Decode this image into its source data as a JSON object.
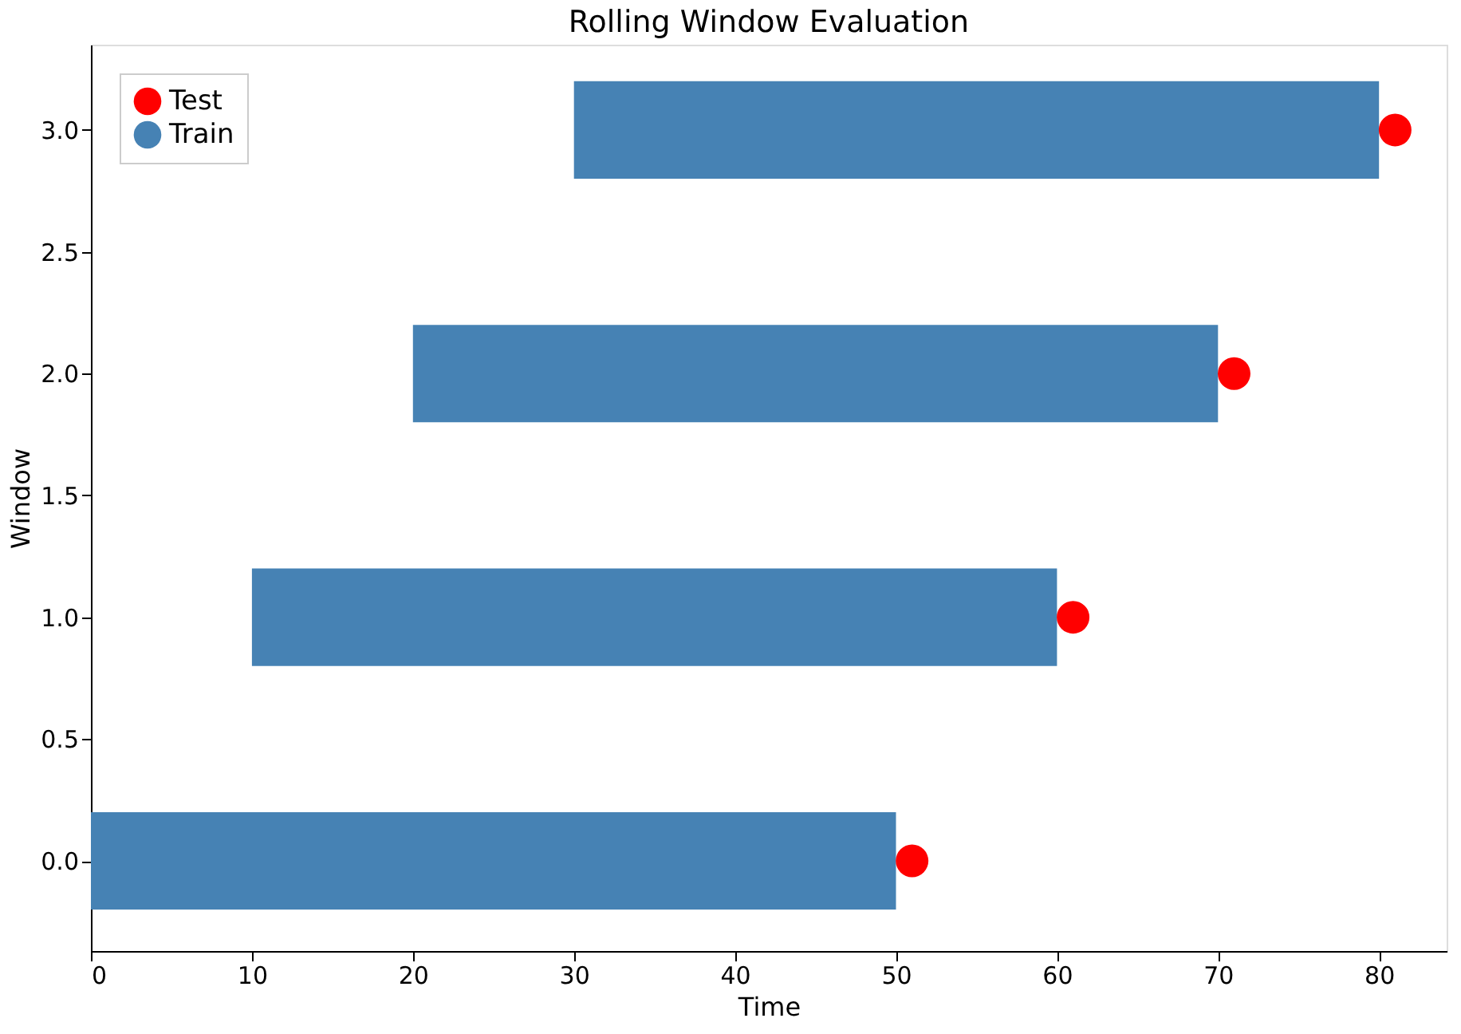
{
  "chart_data": {
    "type": "bar",
    "title": "Rolling Window Evaluation",
    "xlabel": "Time",
    "ylabel": "Window",
    "orientation": "horizontal",
    "legend": "top left",
    "xlim": [
      0,
      84.2
    ],
    "xticks": [
      0,
      10,
      20,
      30,
      40,
      50,
      60,
      70,
      80
    ],
    "ylim": [
      -0.37,
      3.35
    ],
    "yticks": [
      {
        "value": 0,
        "label": "0.0"
      },
      {
        "value": 0.5,
        "label": "0.5"
      },
      {
        "value": 1,
        "label": "1.0"
      },
      {
        "value": 1.5,
        "label": "1.5"
      },
      {
        "value": 2,
        "label": "2.0"
      },
      {
        "value": 2.5,
        "label": "2.5"
      },
      {
        "value": 3,
        "label": "3.0"
      }
    ],
    "series": [
      {
        "name": "Test",
        "type": "scatter",
        "marker": "circle",
        "color": "#ff0000",
        "x": [
          0,
          1,
          2,
          3
        ],
        "values": [
          51,
          61,
          71,
          81
        ]
      },
      {
        "name": "Train",
        "color": "#4682b4",
        "x": [
          0,
          1,
          2,
          3
        ],
        "values": [
          50,
          50,
          50,
          50
        ],
        "base": [
          0,
          10,
          20,
          30
        ]
      }
    ]
  }
}
